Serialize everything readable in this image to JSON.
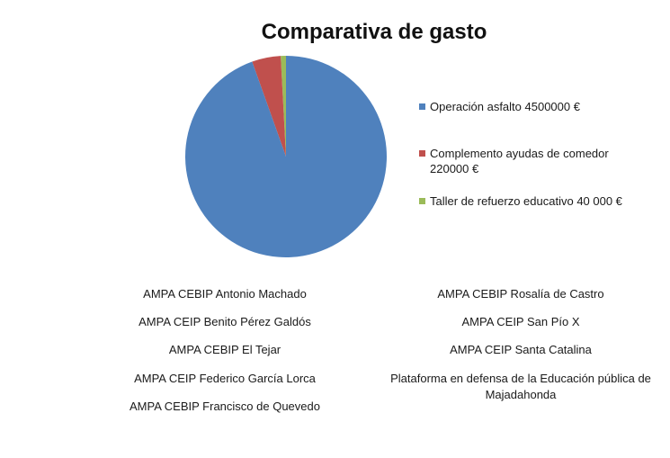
{
  "chart_data": {
    "type": "pie",
    "title": "Comparativa de gasto",
    "slices": [
      {
        "label": "Operación asfalto 4500000 €",
        "value": 4500000,
        "color": "#4f81bd"
      },
      {
        "label": "Complemento ayudas de comedor 220000 €",
        "value": 220000,
        "color": "#c0504d"
      },
      {
        "label": "Taller de refuerzo educativo 40 000 €",
        "value": 40000,
        "color": "#9bbb59"
      }
    ],
    "legend_position": "right"
  },
  "legend": {
    "items": [
      {
        "line1": "Operación asfalto 4500000 €",
        "line2": ""
      },
      {
        "line1": "Complemento ayudas de comedor",
        "line2": "220000 €"
      },
      {
        "line1": "Taller de refuerzo educativo 40 000 €",
        "line2": ""
      }
    ]
  },
  "signers": {
    "left": [
      "AMPA CEBIP  Antonio Machado",
      "AMPA CEIP Benito Pérez Galdós",
      "AMPA CEBIP El Tejar",
      "AMPA CEIP Federico García Lorca",
      "AMPA CEBIP Francisco de Quevedo"
    ],
    "right": [
      "AMPA CEBIP Rosalía de Castro",
      "AMPA CEIP San Pío X",
      "AMPA CEIP Santa Catalina",
      "Plataforma en defensa de la Educación pública de Majadahonda"
    ]
  }
}
